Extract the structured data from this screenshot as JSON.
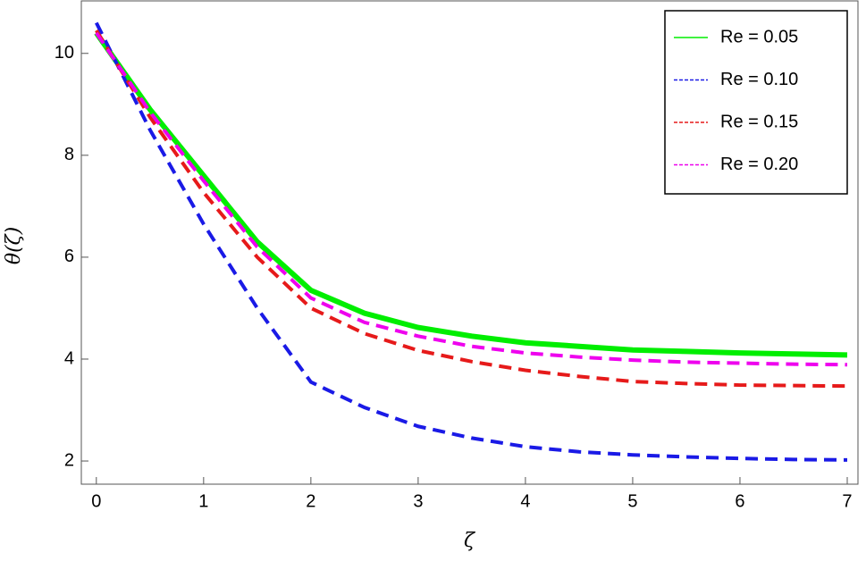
{
  "chart_data": {
    "type": "line",
    "x_label": "ζ",
    "y_label": "θ(ζ)",
    "x": [
      0,
      0.5,
      1,
      1.5,
      2,
      2.5,
      3,
      3.5,
      4,
      4.5,
      5,
      5.5,
      6,
      6.5,
      7
    ],
    "series": [
      {
        "name": "Re = 0.05",
        "color": "#00ee00",
        "dash": "solid",
        "values": [
          10.4,
          8.9,
          7.6,
          6.3,
          5.35,
          4.9,
          4.62,
          4.45,
          4.32,
          4.25,
          4.18,
          4.15,
          4.12,
          4.1,
          4.08
        ]
      },
      {
        "name": "Re = 0.10",
        "color": "#1a1ae6",
        "dash": "dashed",
        "values": [
          10.6,
          8.5,
          6.65,
          5.0,
          3.55,
          3.05,
          2.68,
          2.45,
          2.28,
          2.18,
          2.12,
          2.08,
          2.05,
          2.03,
          2.02
        ]
      },
      {
        "name": "Re = 0.15",
        "color": "#e61a1a",
        "dash": "dashed",
        "values": [
          10.45,
          8.75,
          7.27,
          6.0,
          5.0,
          4.5,
          4.17,
          3.95,
          3.78,
          3.66,
          3.56,
          3.52,
          3.49,
          3.48,
          3.47
        ]
      },
      {
        "name": "Re = 0.20",
        "color": "#ee00ee",
        "dash": "dashed",
        "values": [
          10.4,
          8.85,
          7.5,
          6.2,
          5.2,
          4.72,
          4.45,
          4.25,
          4.12,
          4.04,
          3.98,
          3.94,
          3.92,
          3.9,
          3.89
        ]
      }
    ],
    "xlim": [
      -0.14,
      7.1
    ],
    "ylim": [
      1.545,
      11.03
    ],
    "xticks": [
      0,
      1,
      2,
      3,
      4,
      5,
      6,
      7
    ],
    "yticks": [
      2,
      4,
      6,
      8,
      10
    ],
    "legend": "upper right"
  }
}
